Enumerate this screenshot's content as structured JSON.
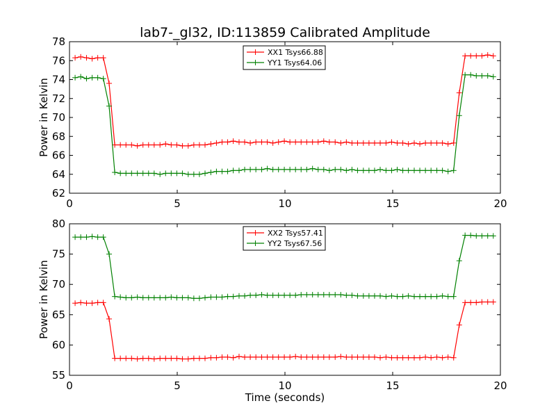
{
  "title": "lab7-_gl32, ID:113859 Calibrated Amplitude",
  "chart_data": [
    {
      "type": "line",
      "title": "lab7-_gl32, ID:113859 Calibrated Amplitude",
      "xlabel": "",
      "ylabel": "Power in Kelvin",
      "xlim": [
        0,
        20
      ],
      "ylim": [
        62,
        78
      ],
      "xticks": [
        "0",
        "5",
        "10",
        "15",
        "20"
      ],
      "yticks": [
        "62",
        "64",
        "66",
        "68",
        "70",
        "72",
        "74",
        "76",
        "78"
      ],
      "legend_position": "top-center",
      "grid": false,
      "x": [
        0.26,
        0.52,
        0.79,
        1.05,
        1.31,
        1.57,
        1.84,
        2.1,
        2.36,
        2.62,
        2.88,
        3.15,
        3.41,
        3.67,
        3.93,
        4.2,
        4.46,
        4.72,
        4.98,
        5.24,
        5.51,
        5.77,
        6.03,
        6.29,
        6.56,
        6.82,
        7.08,
        7.34,
        7.6,
        7.87,
        8.13,
        8.39,
        8.65,
        8.92,
        9.18,
        9.44,
        9.7,
        9.97,
        10.23,
        10.49,
        10.75,
        11.01,
        11.28,
        11.54,
        11.8,
        12.06,
        12.33,
        12.59,
        12.85,
        13.11,
        13.37,
        13.64,
        13.9,
        14.16,
        14.42,
        14.69,
        14.95,
        15.21,
        15.47,
        15.73,
        16.0,
        16.26,
        16.52,
        16.78,
        17.05,
        17.31,
        17.57,
        17.83,
        18.09,
        18.36,
        18.62,
        18.88,
        19.14,
        19.41,
        19.67
      ],
      "series": [
        {
          "name": "XX1 Tsys66.88",
          "color": "#ff0000",
          "values": [
            76.3,
            76.4,
            76.3,
            76.2,
            76.3,
            76.3,
            73.6,
            67.1,
            67.1,
            67.1,
            67.1,
            67.0,
            67.1,
            67.1,
            67.1,
            67.1,
            67.2,
            67.1,
            67.1,
            67.0,
            67.0,
            67.1,
            67.1,
            67.1,
            67.2,
            67.3,
            67.4,
            67.4,
            67.5,
            67.4,
            67.4,
            67.3,
            67.4,
            67.4,
            67.4,
            67.3,
            67.4,
            67.5,
            67.4,
            67.4,
            67.4,
            67.4,
            67.4,
            67.4,
            67.5,
            67.4,
            67.4,
            67.3,
            67.4,
            67.3,
            67.3,
            67.3,
            67.3,
            67.3,
            67.3,
            67.3,
            67.4,
            67.3,
            67.3,
            67.2,
            67.3,
            67.2,
            67.3,
            67.3,
            67.3,
            67.3,
            67.2,
            67.3,
            72.6,
            76.5,
            76.5,
            76.5,
            76.5,
            76.6,
            76.5
          ]
        },
        {
          "name": "YY1 Tsys64.06",
          "color": "#008000",
          "values": [
            74.2,
            74.3,
            74.1,
            74.2,
            74.2,
            74.1,
            71.2,
            64.2,
            64.1,
            64.1,
            64.1,
            64.1,
            64.1,
            64.1,
            64.1,
            64.0,
            64.1,
            64.1,
            64.1,
            64.1,
            64.0,
            64.0,
            64.0,
            64.1,
            64.2,
            64.3,
            64.3,
            64.3,
            64.4,
            64.4,
            64.5,
            64.5,
            64.5,
            64.5,
            64.6,
            64.5,
            64.5,
            64.5,
            64.5,
            64.5,
            64.5,
            64.5,
            64.6,
            64.5,
            64.5,
            64.4,
            64.5,
            64.5,
            64.4,
            64.5,
            64.4,
            64.4,
            64.4,
            64.4,
            64.5,
            64.4,
            64.4,
            64.5,
            64.4,
            64.4,
            64.4,
            64.4,
            64.4,
            64.4,
            64.4,
            64.4,
            64.3,
            64.4,
            70.2,
            74.5,
            74.5,
            74.4,
            74.4,
            74.4,
            74.3
          ]
        }
      ]
    },
    {
      "type": "line",
      "title": "",
      "xlabel": "Time (seconds)",
      "ylabel": "Power in Kelvin",
      "xlim": [
        0,
        20
      ],
      "ylim": [
        55,
        80
      ],
      "xticks": [
        "0",
        "5",
        "10",
        "15",
        "20"
      ],
      "yticks": [
        "55",
        "60",
        "65",
        "70",
        "75",
        "80"
      ],
      "legend_position": "top-center",
      "grid": false,
      "x": [
        0.26,
        0.52,
        0.79,
        1.05,
        1.31,
        1.57,
        1.84,
        2.1,
        2.36,
        2.62,
        2.88,
        3.15,
        3.41,
        3.67,
        3.93,
        4.2,
        4.46,
        4.72,
        4.98,
        5.24,
        5.51,
        5.77,
        6.03,
        6.29,
        6.56,
        6.82,
        7.08,
        7.34,
        7.6,
        7.87,
        8.13,
        8.39,
        8.65,
        8.92,
        9.18,
        9.44,
        9.7,
        9.97,
        10.23,
        10.49,
        10.75,
        11.01,
        11.28,
        11.54,
        11.8,
        12.06,
        12.33,
        12.59,
        12.85,
        13.11,
        13.37,
        13.64,
        13.9,
        14.16,
        14.42,
        14.69,
        14.95,
        15.21,
        15.47,
        15.73,
        16.0,
        16.26,
        16.52,
        16.78,
        17.05,
        17.31,
        17.57,
        17.83,
        18.09,
        18.36,
        18.62,
        18.88,
        19.14,
        19.41,
        19.67
      ],
      "series": [
        {
          "name": "XX2 Tsys57.41",
          "color": "#ff0000",
          "values": [
            66.9,
            67.0,
            66.9,
            66.9,
            67.0,
            67.0,
            64.3,
            57.8,
            57.8,
            57.8,
            57.8,
            57.7,
            57.8,
            57.8,
            57.7,
            57.8,
            57.8,
            57.8,
            57.8,
            57.7,
            57.7,
            57.8,
            57.8,
            57.8,
            57.9,
            57.9,
            58.0,
            58.0,
            57.9,
            58.1,
            58.0,
            58.0,
            58.0,
            58.0,
            58.0,
            58.0,
            58.0,
            58.0,
            58.0,
            58.1,
            58.0,
            58.0,
            58.0,
            58.0,
            58.0,
            58.0,
            58.0,
            58.1,
            58.0,
            58.0,
            58.0,
            58.0,
            58.0,
            58.0,
            57.9,
            58.0,
            57.9,
            57.9,
            57.9,
            57.9,
            57.9,
            57.9,
            58.0,
            57.9,
            58.0,
            57.9,
            58.0,
            57.9,
            63.3,
            67.0,
            67.0,
            67.0,
            67.1,
            67.1,
            67.1
          ]
        },
        {
          "name": "YY2 Tsys67.56",
          "color": "#008000",
          "values": [
            77.8,
            77.8,
            77.8,
            77.9,
            77.8,
            77.8,
            75.0,
            68.0,
            67.9,
            67.8,
            67.8,
            67.9,
            67.8,
            67.8,
            67.8,
            67.8,
            67.8,
            67.9,
            67.8,
            67.8,
            67.8,
            67.7,
            67.7,
            67.8,
            67.9,
            67.9,
            67.9,
            68.0,
            68.0,
            68.1,
            68.1,
            68.2,
            68.2,
            68.3,
            68.2,
            68.2,
            68.2,
            68.2,
            68.2,
            68.2,
            68.3,
            68.3,
            68.3,
            68.3,
            68.3,
            68.3,
            68.3,
            68.3,
            68.2,
            68.2,
            68.1,
            68.1,
            68.1,
            68.1,
            68.1,
            68.0,
            68.1,
            68.0,
            68.0,
            68.1,
            68.0,
            68.0,
            68.0,
            68.0,
            68.0,
            68.1,
            68.0,
            68.0,
            73.9,
            78.1,
            78.1,
            78.0,
            78.0,
            78.0,
            78.0
          ]
        }
      ]
    }
  ]
}
